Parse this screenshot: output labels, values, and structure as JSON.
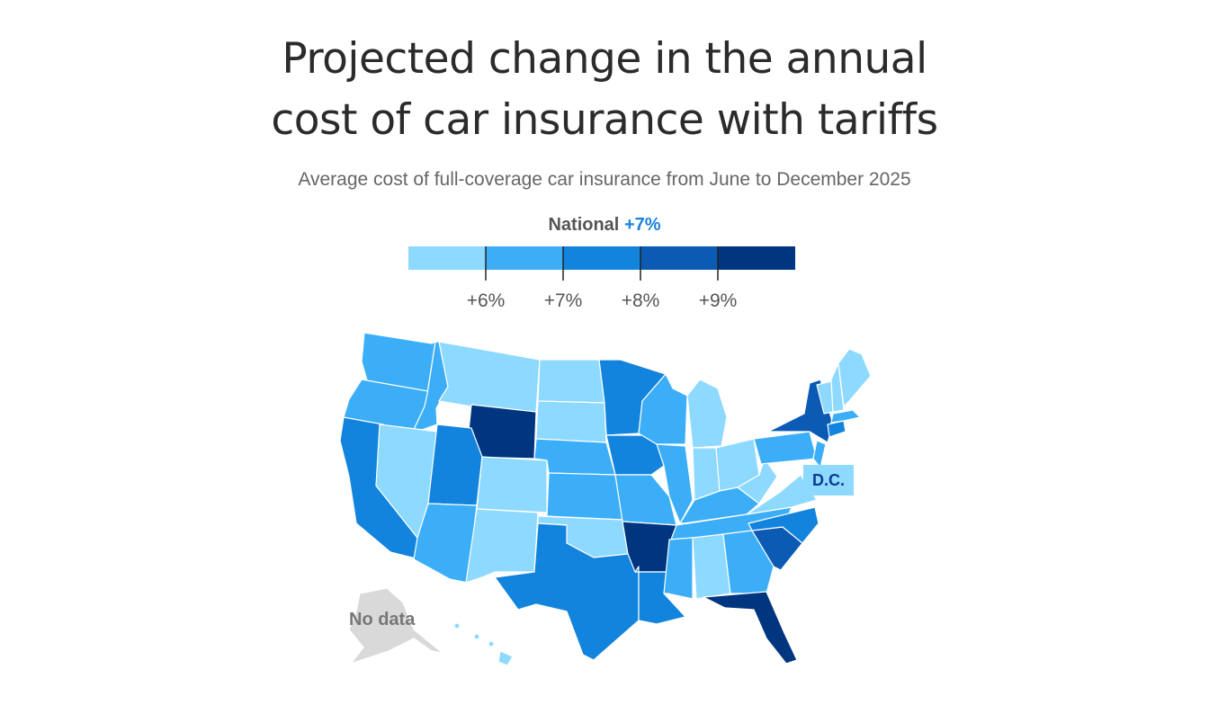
{
  "title_line1": "Projected change in the annual",
  "title_line2": "cost of car insurance with tariffs",
  "subtitle": "Average cost of full-coverage car insurance from June to December 2025",
  "national": {
    "label": "National",
    "value": "+7%"
  },
  "legend": {
    "colors": [
      "#8dd9ff",
      "#3caef8",
      "#1284dd",
      "#0b5bb5",
      "#00357f"
    ],
    "ticks": [
      "+6%",
      "+7%",
      "+8%",
      "+9%"
    ]
  },
  "labels": {
    "dc": "D.C.",
    "no_data": "No data"
  },
  "no_data_color": "#d9d9d9",
  "states": [
    {
      "name": "WA",
      "bin": 1
    },
    {
      "name": "OR",
      "bin": 1
    },
    {
      "name": "CA",
      "bin": 2
    },
    {
      "name": "ID",
      "bin": 1
    },
    {
      "name": "NV",
      "bin": 0
    },
    {
      "name": "MT",
      "bin": 0
    },
    {
      "name": "WY",
      "bin": 4
    },
    {
      "name": "UT",
      "bin": 2
    },
    {
      "name": "AZ",
      "bin": 1
    },
    {
      "name": "CO",
      "bin": 0
    },
    {
      "name": "NM",
      "bin": 0
    },
    {
      "name": "ND",
      "bin": 0
    },
    {
      "name": "SD",
      "bin": 0
    },
    {
      "name": "NE",
      "bin": 1
    },
    {
      "name": "KS",
      "bin": 1
    },
    {
      "name": "OK",
      "bin": 0
    },
    {
      "name": "TX",
      "bin": 2
    },
    {
      "name": "MN",
      "bin": 2
    },
    {
      "name": "IA",
      "bin": 2
    },
    {
      "name": "MO",
      "bin": 1
    },
    {
      "name": "AR",
      "bin": 4
    },
    {
      "name": "LA",
      "bin": 2
    },
    {
      "name": "WI",
      "bin": 1
    },
    {
      "name": "IL",
      "bin": 1
    },
    {
      "name": "MI",
      "bin": 0
    },
    {
      "name": "IN",
      "bin": 0
    },
    {
      "name": "OH",
      "bin": 0
    },
    {
      "name": "KY",
      "bin": 1
    },
    {
      "name": "TN",
      "bin": 1
    },
    {
      "name": "MS",
      "bin": 1
    },
    {
      "name": "AL",
      "bin": 0
    },
    {
      "name": "GA",
      "bin": 1
    },
    {
      "name": "FL",
      "bin": 4
    },
    {
      "name": "SC",
      "bin": 3
    },
    {
      "name": "NC",
      "bin": 2
    },
    {
      "name": "VA",
      "bin": 0
    },
    {
      "name": "WV",
      "bin": 0
    },
    {
      "name": "PA",
      "bin": 1
    },
    {
      "name": "NY",
      "bin": 3
    },
    {
      "name": "NJ",
      "bin": 1
    },
    {
      "name": "CT",
      "bin": 2
    },
    {
      "name": "MA",
      "bin": 1
    },
    {
      "name": "VT",
      "bin": 0
    },
    {
      "name": "NH",
      "bin": 0
    },
    {
      "name": "ME",
      "bin": 0
    },
    {
      "name": "HI",
      "bin": 0
    },
    {
      "name": "DC",
      "bin": 0
    }
  ]
}
